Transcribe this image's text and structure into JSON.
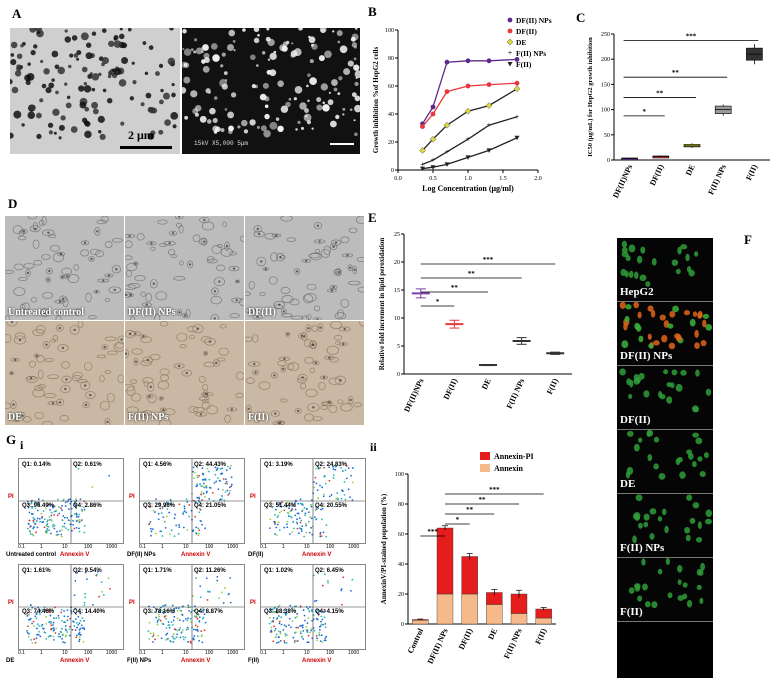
{
  "panels": {
    "A": {
      "letter": "A",
      "scale_left": "2 μm",
      "sem_caption": "15kV   X5,000   5μm"
    },
    "B": {
      "letter": "B"
    },
    "C": {
      "letter": "C"
    },
    "D": {
      "letter": "D",
      "labels": [
        "Untreated control",
        "DF(II) NPs",
        "DF(II)",
        "DE",
        "F(II) NPs",
        "F(II)"
      ]
    },
    "E": {
      "letter": "E"
    },
    "F": {
      "letter": "F",
      "labels": [
        "HepG2",
        "DF(II) NPs",
        "DF(II)",
        "DE",
        "F(II) NPs",
        "F(II)"
      ]
    },
    "G": {
      "letter": "G",
      "sub_i": "i",
      "sub_ii": "ii"
    }
  },
  "chart_data": [
    {
      "id": "B",
      "type": "line",
      "xlabel": "Log Concentration (μg/ml)",
      "ylabel": "Growth inhibition %of HepG2 cells",
      "xlim": [
        0.0,
        2.0
      ],
      "ylim": [
        0,
        100
      ],
      "xticks": [
        "0.0",
        "0.5",
        "1.0",
        "1.5",
        "2.0"
      ],
      "yticks": [
        "0",
        "20",
        "40",
        "60",
        "80",
        "100"
      ],
      "legend": "top-right",
      "x": [
        0.35,
        0.5,
        0.7,
        1.0,
        1.3,
        1.7
      ],
      "series": [
        {
          "name": "DF(II) NPs",
          "color": "#5b2a8c",
          "marker": "circle",
          "values": [
            33,
            45,
            77,
            78,
            78,
            79
          ]
        },
        {
          "name": "DF(II)",
          "color": "#e8383d",
          "marker": "circle",
          "values": [
            31,
            40,
            56,
            60,
            61,
            62
          ]
        },
        {
          "name": "DE",
          "color": "#d9d93a",
          "marker": "diamond",
          "values": [
            14,
            22,
            32,
            42,
            46,
            58
          ]
        },
        {
          "name": "F(II) NPs",
          "color": "#222222",
          "marker": "plus",
          "values": [
            4,
            7,
            13,
            22,
            32,
            38
          ]
        },
        {
          "name": "F(II)",
          "color": "#222222",
          "marker": "triangle-down",
          "values": [
            1,
            2,
            4,
            9,
            14,
            23
          ]
        }
      ]
    },
    {
      "id": "C",
      "type": "box",
      "ylabel": "IC50 (μg/mL) for HepG2 growth inhibition",
      "ylim": [
        0,
        250
      ],
      "yticks": [
        "0",
        "50",
        "100",
        "150",
        "200",
        "250"
      ],
      "categories": [
        "DF(II)NPs",
        "DF(II)",
        "DE",
        "F(II) NPs",
        "F(II)"
      ],
      "colors": [
        "#7b3fa6",
        "#e8383d",
        "#d9d93a",
        "#9a9a9a",
        "#333333"
      ],
      "medians": [
        3,
        7,
        28,
        100,
        210
      ],
      "q1": [
        2,
        6,
        26,
        92,
        198
      ],
      "q3": [
        4,
        8,
        31,
        107,
        222
      ],
      "min": [
        2,
        5,
        24,
        88,
        190
      ],
      "max": [
        5,
        9,
        33,
        110,
        230
      ],
      "significance": [
        "*",
        "**",
        "**",
        "***"
      ]
    },
    {
      "id": "E",
      "type": "scatter",
      "ylabel": "Relative fold increment in lipid peroxidation",
      "ylim": [
        0,
        25
      ],
      "yticks": [
        "0",
        "5",
        "10",
        "15",
        "20",
        "25"
      ],
      "categories": [
        "DF(II)NPs",
        "DF(II)",
        "DE",
        "F(II) NPs",
        "F(II)"
      ],
      "colors": [
        "#7b3fa6",
        "#e8383d",
        "#333333",
        "#333333",
        "#333333"
      ],
      "means": [
        14.4,
        8.9,
        1.6,
        5.9,
        3.7
      ],
      "errors": [
        0.8,
        0.7,
        0.1,
        0.6,
        0.2
      ],
      "significance": [
        "*",
        "**",
        "**",
        "***"
      ]
    },
    {
      "id": "Gii",
      "type": "bar",
      "stacked": true,
      "ylabel": "AnnexinV/PI-stained population (%)",
      "ylim": [
        0,
        100
      ],
      "yticks": [
        "0",
        "20",
        "40",
        "60",
        "80",
        "100"
      ],
      "categories": [
        "Control",
        "DF(II) NPs",
        "DF(II)",
        "DE",
        "F(II) NPs",
        "F(II)"
      ],
      "legend": "top-right",
      "series": [
        {
          "name": "Annexin",
          "color": "#f5b98a",
          "values": [
            2.5,
            20,
            20,
            13,
            7,
            4
          ]
        },
        {
          "name": "Annexin-PI",
          "color": "#e51d1d",
          "values": [
            0.5,
            44,
            25,
            8,
            13,
            6
          ]
        }
      ],
      "totals_err": [
        0.3,
        1.5,
        2.0,
        2.0,
        2.5,
        1.0
      ],
      "significance": [
        "***",
        "*",
        "**",
        "**",
        "***"
      ]
    }
  ],
  "flow_plots": [
    {
      "name": "Untreated control",
      "q1": "Q1: 0.14%",
      "q2": "Q2: 0.61%",
      "q3": "Q3: 96.49%",
      "q4": "Q4: 2.86%"
    },
    {
      "name": "DF(II) NPs",
      "q1": "Q1: 4.56%",
      "q2": "Q2: 44.43%",
      "q3": "Q3: 29.96%",
      "q4": "Q4: 21.05%"
    },
    {
      "name": "DF(II)",
      "q1": "Q1: 3.19%",
      "q2": "Q2: 24.83%",
      "q3": "Q3: 51.44%",
      "q4": "Q4: 20.55%"
    },
    {
      "name": "DE",
      "q1": "Q1: 1.61%",
      "q2": "Q2: 9.54%",
      "q3": "Q3: 74.46%",
      "q4": "Q4: 14.40%"
    },
    {
      "name": "F(II) NPs",
      "q1": "Q1: 1.71%",
      "q2": "Q2: 11.26%",
      "q3": "Q3: 78.16%",
      "q4": "Q4: 8.87%"
    },
    {
      "name": "F(II)",
      "q1": "Q1: 1.02%",
      "q2": "Q2: 6.45%",
      "q3": "Q3: 88.38%",
      "q4": "Q4: 4.15%"
    }
  ],
  "flow_axis": {
    "x": "Annexin V",
    "y": "PI",
    "ticks": [
      "0.1",
      "1",
      "10",
      "100",
      "1000"
    ]
  }
}
